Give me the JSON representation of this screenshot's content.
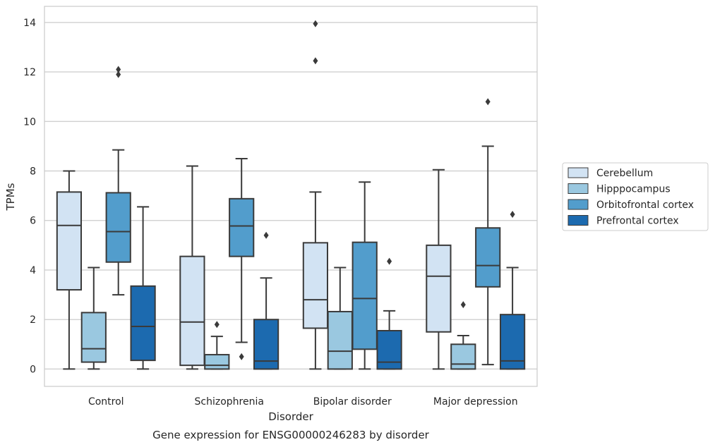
{
  "chart_data": {
    "type": "boxplot",
    "xlabel": "Disorder",
    "ylabel": "TPMs",
    "caption": "Gene expression for ENSG00000246283 by disorder",
    "ylim": [
      -0.7,
      14.65
    ],
    "yticks": [
      0,
      2,
      4,
      6,
      8,
      10,
      12,
      14
    ],
    "grid": "horizontal",
    "legend_position": "right",
    "categories": [
      "Control",
      "Schizophrenia",
      "Bipolar disorder",
      "Major depression"
    ],
    "series": [
      {
        "name": "Cerebellum",
        "color": "#d2e3f3",
        "boxes": [
          {
            "whislo": 0.0,
            "q1": 3.2,
            "med": 5.8,
            "q3": 7.15,
            "whishi": 8.0,
            "fliers": []
          },
          {
            "whislo": 0.0,
            "q1": 0.15,
            "med": 1.9,
            "q3": 4.55,
            "whishi": 8.2,
            "fliers": []
          },
          {
            "whislo": 0.0,
            "q1": 1.65,
            "med": 2.8,
            "q3": 5.1,
            "whishi": 7.15,
            "fliers": [
              12.45,
              13.95
            ]
          },
          {
            "whislo": 0.0,
            "q1": 1.5,
            "med": 3.75,
            "q3": 5.0,
            "whishi": 8.05,
            "fliers": []
          }
        ]
      },
      {
        "name": "Hipppocampus",
        "color": "#9ac8e0",
        "boxes": [
          {
            "whislo": 0.0,
            "q1": 0.28,
            "med": 0.82,
            "q3": 2.28,
            "whishi": 4.1,
            "fliers": []
          },
          {
            "whislo": 0.0,
            "q1": 0.0,
            "med": 0.15,
            "q3": 0.58,
            "whishi": 1.32,
            "fliers": [
              1.8
            ]
          },
          {
            "whislo": 0.0,
            "q1": 0.0,
            "med": 0.72,
            "q3": 2.32,
            "whishi": 4.1,
            "fliers": []
          },
          {
            "whislo": 0.0,
            "q1": 0.0,
            "med": 0.2,
            "q3": 1.0,
            "whishi": 1.35,
            "fliers": [
              2.6
            ]
          }
        ]
      },
      {
        "name": "Orbitofrontal cortex",
        "color": "#529dcc",
        "boxes": [
          {
            "whislo": 3.0,
            "q1": 4.32,
            "med": 5.55,
            "q3": 7.12,
            "whishi": 8.85,
            "fliers": [
              11.9,
              12.1
            ]
          },
          {
            "whislo": 1.08,
            "q1": 4.55,
            "med": 5.78,
            "q3": 6.88,
            "whishi": 8.5,
            "fliers": [
              0.5
            ]
          },
          {
            "whislo": 0.0,
            "q1": 0.8,
            "med": 2.85,
            "q3": 5.12,
            "whishi": 7.55,
            "fliers": []
          },
          {
            "whislo": 0.18,
            "q1": 3.32,
            "med": 4.18,
            "q3": 5.7,
            "whishi": 9.0,
            "fliers": [
              10.8
            ]
          }
        ]
      },
      {
        "name": "Prefrontal cortex",
        "color": "#1c6aaf",
        "boxes": [
          {
            "whislo": 0.0,
            "q1": 0.35,
            "med": 1.72,
            "q3": 3.35,
            "whishi": 6.55,
            "fliers": []
          },
          {
            "whislo": 0.0,
            "q1": 0.0,
            "med": 0.32,
            "q3": 2.0,
            "whishi": 3.68,
            "fliers": [
              5.4
            ]
          },
          {
            "whislo": 0.0,
            "q1": 0.0,
            "med": 0.28,
            "q3": 1.55,
            "whishi": 2.35,
            "fliers": [
              4.35
            ]
          },
          {
            "whislo": 0.0,
            "q1": 0.0,
            "med": 0.33,
            "q3": 2.2,
            "whishi": 4.1,
            "fliers": [
              6.25
            ]
          }
        ]
      }
    ]
  }
}
